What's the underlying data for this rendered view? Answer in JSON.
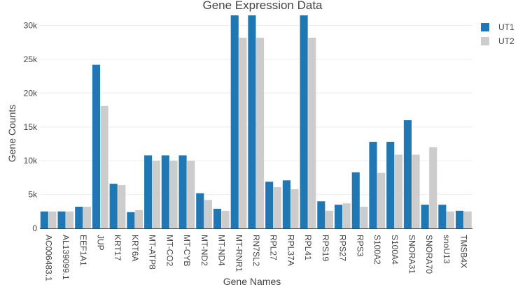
{
  "chart_data": {
    "type": "bar",
    "title": "Gene Expression Data",
    "xlabel": "Gene Names",
    "ylabel": "Gene Counts",
    "ylim": [
      0,
      31500
    ],
    "y_ticks": [
      0,
      5000,
      10000,
      15000,
      20000,
      25000,
      30000
    ],
    "y_tick_labels": [
      "0",
      "5k",
      "10k",
      "15k",
      "20k",
      "25k",
      "30k"
    ],
    "grid": true,
    "legend_position": "top-right",
    "categories": [
      "AC006483.1",
      "AL139099.1",
      "EEF1A1",
      "JUP",
      "KRT17",
      "KRT6A",
      "MT-ATP8",
      "MT-CO2",
      "MT-CYB",
      "MT-ND2",
      "MT-ND4",
      "MT-RNR1",
      "RN7SL2",
      "RPL27",
      "RPL37A",
      "RPL41",
      "RPS19",
      "RPS27",
      "RPS3",
      "S100A2",
      "S100A4",
      "SNORA31",
      "SNORA70",
      "snoU13",
      "TMSB4X"
    ],
    "tick_categories": [
      "AC006483.1",
      "AL139099.1",
      "EEF1A1",
      "JUP",
      "KRT17",
      "KRT6A",
      "MT-ATP8",
      "MT-CO2",
      "MT-CYB",
      "MT-ND2",
      "MT-ND4",
      "MT-RNR1",
      "RN7SL2",
      "RPL27",
      "RPL37A",
      "RPL41",
      "RPS19",
      "RPS27",
      "RPS3",
      "S100A2",
      "S100A4",
      "SNORA31",
      "SNORA70",
      "snoU13",
      "TMSB4X"
    ],
    "tick_every": 1,
    "series": [
      {
        "name": "UT1",
        "color": "#1f77b4",
        "values": [
          2500,
          2500,
          3200,
          24200,
          6600,
          2400,
          10800,
          10800,
          10800,
          5200,
          2900,
          31500,
          31500,
          6900,
          7100,
          31500,
          4000,
          3500,
          8300,
          12800,
          12800,
          16000,
          3500,
          3500,
          2600
        ]
      },
      {
        "name": "UT2",
        "color": "#cccccc",
        "values": [
          2500,
          2500,
          3200,
          18100,
          6400,
          2700,
          10000,
          10000,
          10000,
          4200,
          2600,
          28200,
          28200,
          6100,
          5800,
          28200,
          2600,
          3700,
          3200,
          8200,
          10900,
          10900,
          12000,
          2500,
          2500
        ]
      }
    ]
  }
}
